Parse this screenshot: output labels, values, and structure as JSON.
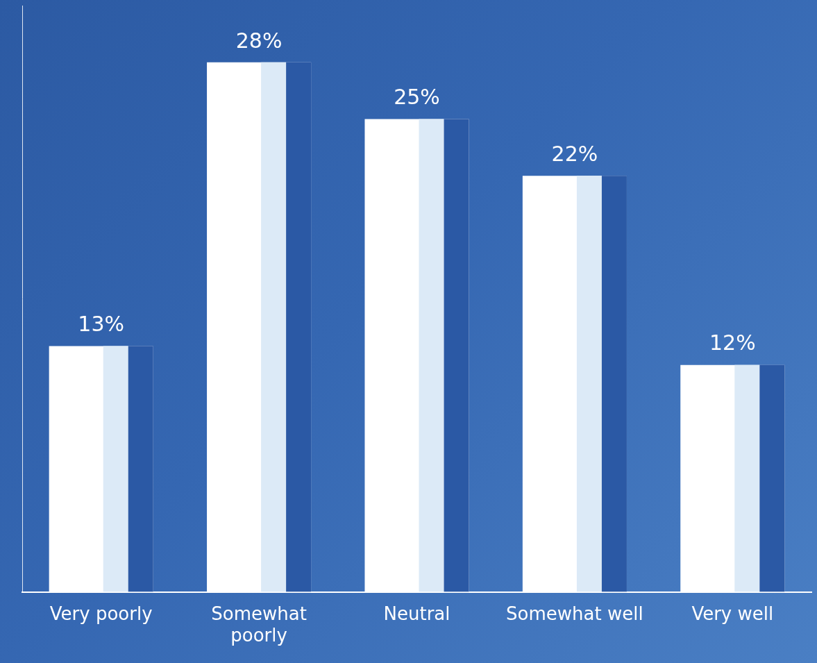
{
  "chart_data": {
    "type": "bar",
    "categories": [
      "Very poorly",
      "Somewhat poorly",
      "Neutral",
      "Somewhat well",
      "Very well"
    ],
    "values": [
      13,
      28,
      25,
      22,
      12
    ],
    "value_labels": [
      "13%",
      "28%",
      "25%",
      "22%",
      "12%"
    ],
    "data_labels": true,
    "color": "#ffffff",
    "ylim": [
      0,
      31
    ],
    "tick_labels": "x",
    "grid": false
  }
}
